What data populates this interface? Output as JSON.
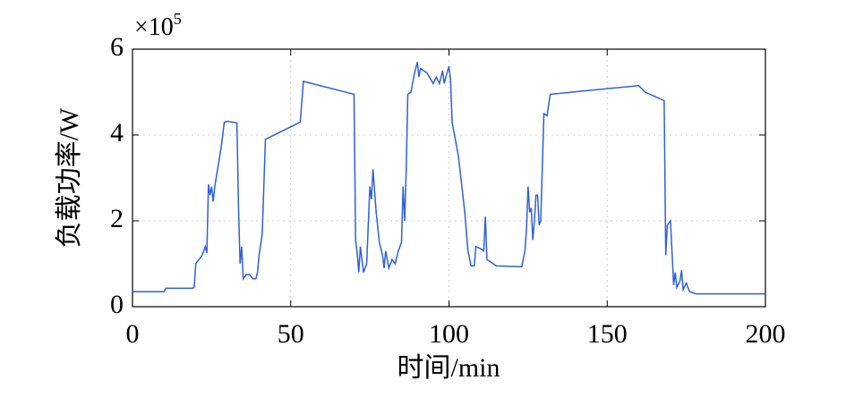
{
  "chart_data": {
    "type": "line",
    "xlabel": "时间/min",
    "ylabel": "负载功率/W",
    "y_multiplier": "×10",
    "y_multiplier_exponent": "5",
    "xlim": [
      0,
      200
    ],
    "xticks": [
      0,
      50,
      100,
      150,
      200
    ],
    "ylim": [
      0,
      6
    ],
    "yticks": [
      0,
      2,
      4,
      6
    ],
    "grid": true,
    "x": [
      0,
      10,
      10.5,
      19,
      19.5,
      20,
      22,
      23,
      23.5,
      24,
      24.5,
      25,
      25.5,
      26,
      28,
      29,
      30,
      33,
      33.5,
      34,
      34.5,
      35,
      36,
      37,
      38,
      39,
      39.5,
      40,
      41,
      42,
      53,
      54,
      70,
      70.5,
      71,
      71.5,
      72,
      73,
      74,
      75,
      75.5,
      76,
      77,
      78,
      79,
      79.5,
      80,
      81,
      82,
      83,
      84,
      85,
      85.5,
      86,
      86.5,
      87,
      88,
      89,
      90,
      90.5,
      91,
      93,
      95,
      96,
      97,
      98,
      98.5,
      99,
      100,
      100.5,
      101,
      103,
      105,
      106,
      107,
      108,
      108.5,
      110,
      111,
      111.5,
      112,
      115,
      123,
      124,
      124.5,
      125,
      125.5,
      126,
      126.5,
      127,
      127.5,
      128,
      128.5,
      129,
      130,
      131,
      132,
      160,
      162,
      168,
      168.5,
      169,
      169.5,
      170,
      171,
      171.5,
      172,
      173,
      173.5,
      174,
      175,
      176,
      178,
      200
    ],
    "series": [
      {
        "name": "负载功率",
        "color": "#2f5fd8",
        "values": [
          0.35,
          0.35,
          0.43,
          0.43,
          0.45,
          1.0,
          1.2,
          1.4,
          1.25,
          2.85,
          2.6,
          2.8,
          2.45,
          2.8,
          3.7,
          4.3,
          4.32,
          4.28,
          2.3,
          1.0,
          1.4,
          0.65,
          0.75,
          0.75,
          0.65,
          0.65,
          0.8,
          1.2,
          1.7,
          3.9,
          4.3,
          5.25,
          4.95,
          1.55,
          1.25,
          0.8,
          1.4,
          0.8,
          1.0,
          2.8,
          2.5,
          3.2,
          2.2,
          1.5,
          1.2,
          0.9,
          1.3,
          0.9,
          1.1,
          1.0,
          1.3,
          1.5,
          2.8,
          2.0,
          3.2,
          4.95,
          5.0,
          5.4,
          5.7,
          5.35,
          5.55,
          5.45,
          5.2,
          5.35,
          5.2,
          5.5,
          5.2,
          5.35,
          5.6,
          5.3,
          4.3,
          3.5,
          2.2,
          1.3,
          0.95,
          0.95,
          1.4,
          1.35,
          1.3,
          2.1,
          1.1,
          0.95,
          0.93,
          1.3,
          1.8,
          2.8,
          2.2,
          2.3,
          1.55,
          2.0,
          2.6,
          2.6,
          1.9,
          2.0,
          4.5,
          4.45,
          4.95,
          5.15,
          5.0,
          4.8,
          1.2,
          1.9,
          1.95,
          2.0,
          0.5,
          0.8,
          0.45,
          0.6,
          0.85,
          0.4,
          0.55,
          0.35,
          0.3,
          0.3
        ]
      }
    ]
  }
}
